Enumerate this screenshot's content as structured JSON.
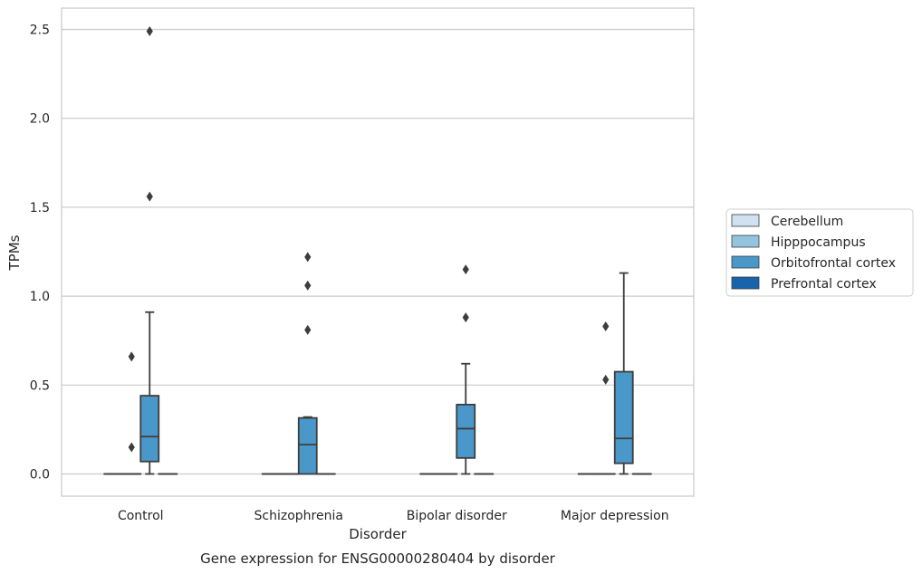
{
  "chart_data": {
    "type": "box",
    "xlabel": "Disorder",
    "ylabel": "TPMs",
    "caption": "Gene expression for ENSG00000280404 by disorder",
    "ylim": [
      -0.12,
      2.62
    ],
    "yticks": [
      "0.0",
      "0.5",
      "1.0",
      "1.5",
      "2.0",
      "2.5"
    ],
    "grid": true,
    "legend_position": "right",
    "categories": [
      "Control",
      "Schizophrenia",
      "Bipolar disorder",
      "Major depression"
    ],
    "series": [
      {
        "name": "Cerebellum",
        "color": "#d0e1f2",
        "boxes": [
          {
            "q1": 0,
            "median": 0,
            "q3": 0,
            "whislo": 0,
            "whishi": 0,
            "fliers": []
          },
          {
            "q1": 0,
            "median": 0,
            "q3": 0,
            "whislo": 0,
            "whishi": 0,
            "fliers": []
          },
          {
            "q1": 0,
            "median": 0,
            "q3": 0,
            "whislo": 0,
            "whishi": 0,
            "fliers": []
          },
          {
            "q1": 0,
            "median": 0,
            "q3": 0,
            "whislo": 0,
            "whishi": 0,
            "fliers": []
          }
        ]
      },
      {
        "name": "Hipppocampus",
        "color": "#94c4df",
        "boxes": [
          {
            "q1": 0,
            "median": 0,
            "q3": 0,
            "whislo": 0,
            "whishi": 0,
            "fliers": [
              0.66,
              0.15
            ]
          },
          {
            "q1": 0,
            "median": 0,
            "q3": 0,
            "whislo": 0,
            "whishi": 0,
            "fliers": []
          },
          {
            "q1": 0,
            "median": 0,
            "q3": 0,
            "whislo": 0,
            "whishi": 0,
            "fliers": []
          },
          {
            "q1": 0,
            "median": 0,
            "q3": 0,
            "whislo": 0,
            "whishi": 0,
            "fliers": [
              0.83,
              0.53
            ]
          }
        ]
      },
      {
        "name": "Orbitofrontal cortex",
        "color": "#4a98c9",
        "boxes": [
          {
            "q1": 0.07,
            "median": 0.21,
            "q3": 0.44,
            "whislo": 0,
            "whishi": 0.91,
            "fliers": [
              1.56,
              2.49
            ]
          },
          {
            "q1": 0,
            "median": 0.165,
            "q3": 0.315,
            "whislo": 0,
            "whishi": 0.32,
            "fliers": [
              0.81,
              1.06,
              1.22
            ]
          },
          {
            "q1": 0.09,
            "median": 0.255,
            "q3": 0.39,
            "whislo": 0,
            "whishi": 0.62,
            "fliers": [
              0.88,
              1.15
            ]
          },
          {
            "q1": 0.06,
            "median": 0.2,
            "q3": 0.575,
            "whislo": 0,
            "whishi": 1.13,
            "fliers": []
          }
        ]
      },
      {
        "name": "Prefrontal cortex",
        "color": "#1764ab",
        "boxes": [
          {
            "q1": 0,
            "median": 0,
            "q3": 0,
            "whislo": 0,
            "whishi": 0,
            "fliers": []
          },
          {
            "q1": 0,
            "median": 0,
            "q3": 0,
            "whislo": 0,
            "whishi": 0,
            "fliers": []
          },
          {
            "q1": 0,
            "median": 0,
            "q3": 0,
            "whislo": 0,
            "whishi": 0,
            "fliers": []
          },
          {
            "q1": 0,
            "median": 0,
            "q3": 0,
            "whislo": 0,
            "whishi": 0,
            "fliers": []
          }
        ]
      }
    ],
    "colors": {
      "grid": "#cccccc",
      "frame": "#cccccc",
      "box_line": "#3d3d3d",
      "flier": "#3d3d3d"
    }
  }
}
